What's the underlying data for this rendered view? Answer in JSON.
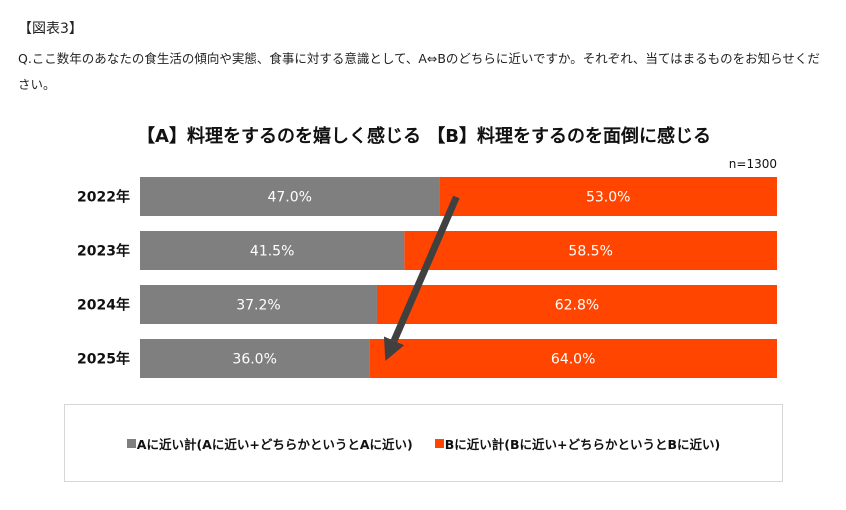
{
  "figure_label": "【図表3】",
  "question_text": "Q.ここ数年のあなたの食生活の傾向や実態、食事に対する意識として、A⇔Bのどちらに近いですか。それぞれ、当てはまるものをお知らせください。",
  "colors": {
    "series_a": "#7f7f7f",
    "series_b": "#ff4500",
    "arrow": "#404040",
    "label_text": "#ffffff"
  },
  "chart_data": {
    "type": "bar",
    "orientation": "horizontal",
    "stacked": true,
    "percent_stacked": true,
    "title": "【A】料理をするのを嬉しく感じる 【B】料理をするのを面倒に感じる",
    "sample_size": "n=1300",
    "categories": [
      "2022年",
      "2023年",
      "2024年",
      "2025年"
    ],
    "series": [
      {
        "name": "Aに近い計(Aに近い+どちらかというとAに近い)",
        "values": [
          47.0,
          41.5,
          37.2,
          36.0
        ],
        "labels": [
          "47.0%",
          "41.5%",
          "37.2%",
          "36.0%"
        ]
      },
      {
        "name": "Bに近い計(Bに近い+どちらかというとBに近い)",
        "values": [
          53.0,
          58.5,
          62.8,
          64.0
        ],
        "labels": [
          "53.0%",
          "58.5%",
          "62.8%",
          "64.0%"
        ]
      }
    ],
    "xlim": [
      0,
      100
    ],
    "grid": false,
    "legend_position": "bottom",
    "annotation": "downward arrow from the 2022 A/B boundary to the 2025 A/B boundary"
  }
}
